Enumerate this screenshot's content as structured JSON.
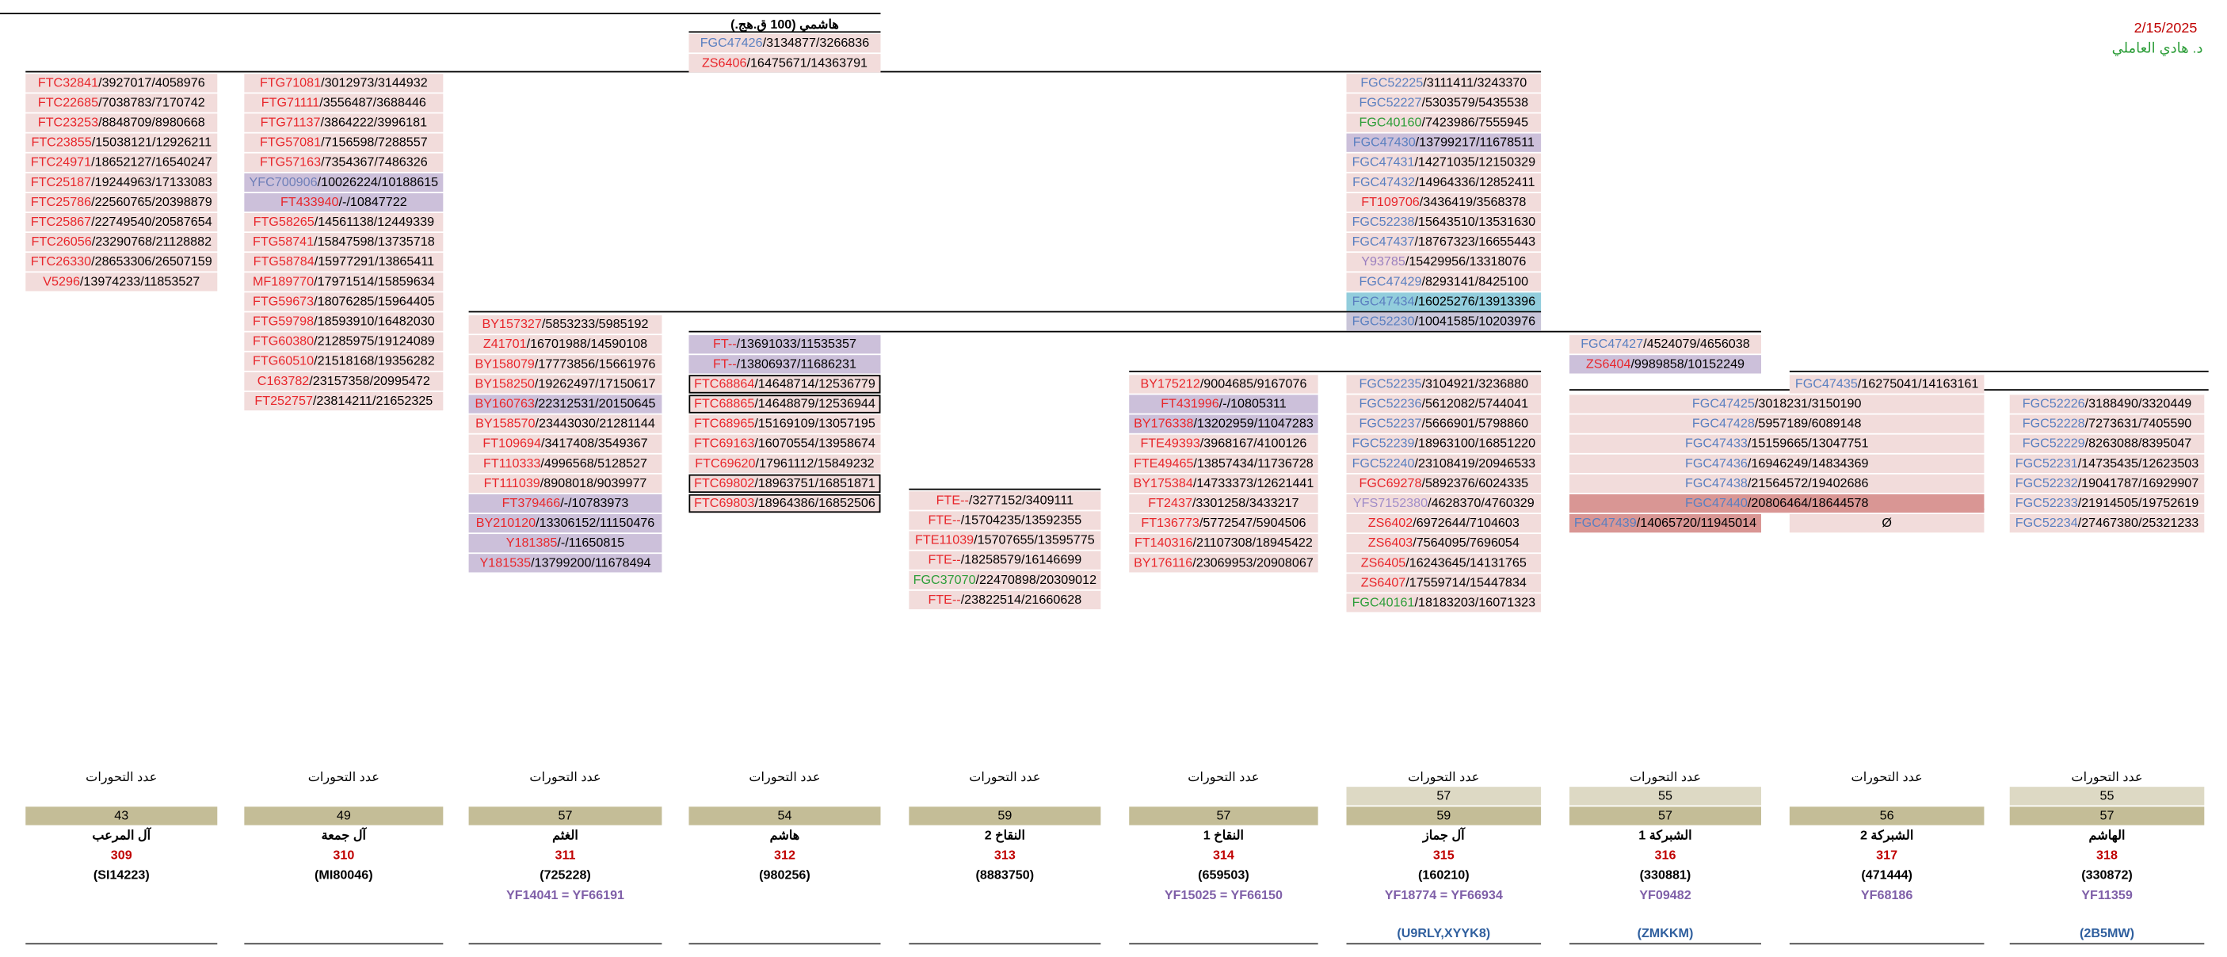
{
  "header": {
    "date": "2/15/2025",
    "author": "د. هادي العاملي"
  },
  "top": {
    "title": "هاشمي (100 ق.هج.)",
    "name_color": "#5a7fc0",
    "cells": [
      {
        "text": "FGC47426/3134877/3266836"
      },
      {
        "text": "ZS6406/16475671/14363791",
        "color": "#e8262b"
      }
    ]
  },
  "blocks": [
    {
      "name_color": "#e8262b",
      "cells": [
        {
          "text": "FTC32841/3927017/4058976"
        },
        {
          "text": "FTC22685/7038783/7170742"
        },
        {
          "text": "FTC23253/8848709/8980668"
        },
        {
          "text": "FTC23855/15038121/12926211"
        },
        {
          "text": "FTC24971/18652127/16540247"
        },
        {
          "text": "FTC25187/19244963/17133083"
        },
        {
          "text": "FTC25786/22560765/20398879"
        },
        {
          "text": "FTC25867/22749540/20587654"
        },
        {
          "text": "FTC26056/23290768/21128882"
        },
        {
          "text": "FTC26330/28653306/26507159"
        },
        {
          "text": "V5296/13974233/11853527"
        }
      ]
    },
    {
      "name_color": "#e8262b",
      "cells": [
        {
          "text": "FTG71081/3012973/3144932"
        },
        {
          "text": "FTG71111/3556487/3688446"
        },
        {
          "text": "FTG71137/3864222/3996181"
        },
        {
          "text": "FTG57081/7156598/7288557"
        },
        {
          "text": "FTG57163/7354367/7486326"
        },
        {
          "text": "YFC700906/10026224/10188615",
          "color": "#6f7fb8",
          "fill": "#ccc0da"
        },
        {
          "text": "FT433940/-/10847722",
          "fill": "#ccc0da"
        },
        {
          "text": "FTG58265/14561138/12449339"
        },
        {
          "text": "FTG58741/15847598/13735718"
        },
        {
          "text": "FTG58784/15977291/13865411"
        },
        {
          "text": "MF189770/17971514/15859634"
        },
        {
          "text": "FTG59673/18076285/15964405"
        },
        {
          "text": "FTG59798/18593910/16482030"
        },
        {
          "text": "FTG60380/21285975/19124089"
        },
        {
          "text": "FTG60510/21518168/19356282"
        },
        {
          "text": "C163782/23157358/20995472"
        },
        {
          "text": "FT252757/23814211/21652325"
        }
      ]
    },
    {
      "name_color": "#e8262b",
      "cells": [
        {
          "text": "BY157327/5853233/5985192"
        },
        {
          "text": "Z41701/16701988/14590108"
        },
        {
          "text": "BY158079/17773856/15661976"
        },
        {
          "text": "BY158250/19262497/17150617"
        },
        {
          "text": "BY160763/22312531/20150645",
          "fill": "#ccc0da"
        },
        {
          "text": "BY158570/23443030/21281144"
        },
        {
          "text": "FT109694/3417408/3549367"
        },
        {
          "text": "FT110333/4996568/5128527"
        },
        {
          "text": "FT111039/8908018/9039977"
        },
        {
          "text": "FT379466/-/10783973",
          "fill": "#ccc0da"
        },
        {
          "text": "BY210120/13306152/11150476",
          "fill": "#ccc0da"
        },
        {
          "text": "Y181385/-/11650815",
          "fill": "#ccc0da"
        },
        {
          "text": "Y181535/13799200/11678494",
          "fill": "#ccc0da"
        }
      ]
    },
    {
      "name_color": "#e8262b",
      "cells": [
        {
          "text": "FT--/13691033/11535357",
          "fill": "#ccc0da"
        },
        {
          "text": "FT--/13806937/11686231",
          "fill": "#ccc0da"
        },
        {
          "text": "FTC68864/14648714/12536779",
          "boxed": true
        },
        {
          "text": "FTC68865/14648879/12536944",
          "boxed": true
        },
        {
          "text": "FTC68965/15169109/13057195"
        },
        {
          "text": "FTC69163/16070554/13958674"
        },
        {
          "text": "FTC69620/17961112/15849232"
        },
        {
          "text": "FTC69802/18963751/16851871",
          "boxed": true
        },
        {
          "text": "FTC69803/18964386/16852506",
          "boxed": true
        }
      ]
    },
    {
      "name_color": "#e8262b",
      "cells": [
        {
          "text": "FTE--/3277152/3409111"
        },
        {
          "text": "FTE--/15704235/13592355"
        },
        {
          "text": "FTE11039/15707655/13595775"
        },
        {
          "text": "FTE--/18258579/16146699"
        },
        {
          "text": "FGC37070/22470898/20309012",
          "color": "#2e9e3a"
        },
        {
          "text": "FTE--/23822514/21660628"
        }
      ]
    },
    {
      "name_color": "#e8262b",
      "cells": [
        {
          "text": "BY175212/9004685/9167076"
        },
        {
          "text": "FT431996/-/10805311",
          "fill": "#ccc0da"
        },
        {
          "text": "BY176338/13202959/11047283",
          "fill": "#ccc0da"
        },
        {
          "text": "FTE49393/3968167/4100126"
        },
        {
          "text": "FTE49465/13857434/11736728"
        },
        {
          "text": "BY175384/14733373/12621441"
        },
        {
          "text": "FT2437/3301258/3433217"
        },
        {
          "text": "FT136773/5772547/5904506"
        },
        {
          "text": "FT140316/21107308/18945422"
        },
        {
          "text": "BY176116/23069953/20908067"
        }
      ]
    },
    {
      "name_color": "#5a7fc0",
      "cells": [
        {
          "text": "FGC52225/3111411/3243370"
        },
        {
          "text": "FGC52227/5303579/5435538"
        },
        {
          "text": "FGC40160/7423986/7555945",
          "color": "#2e9e3a"
        },
        {
          "text": "FGC47430/13799217/11678511",
          "fill": "#ccc0da"
        },
        {
          "text": "FGC47431/14271035/12150329"
        },
        {
          "text": "FGC47432/14964336/12852411"
        },
        {
          "text": "FT109706/3436419/3568378",
          "color": "#e8262b"
        },
        {
          "text": "FGC52238/15643510/13531630"
        },
        {
          "text": "FGC47437/18767323/16655443"
        },
        {
          "text": "Y93785/15429956/13318076",
          "color": "#9a7fbf"
        },
        {
          "text": "FGC47429/8293141/8425100"
        },
        {
          "text": "FGC47434/16025276/13913396",
          "fill": "#92cddc"
        },
        {
          "text": "FGC52230/10041585/10203976",
          "fill": "#c9c5d8"
        }
      ]
    },
    {
      "name_color": "#5a7fc0",
      "cells": [
        {
          "text": "FGC52235/3104921/3236880"
        },
        {
          "text": "FGC52236/5612082/5744041"
        },
        {
          "text": "FGC52237/5666901/5798860"
        },
        {
          "text": "FGC52239/18963100/16851220"
        },
        {
          "text": "FGC52240/23108419/20946533"
        },
        {
          "text": "FGC69278/5892376/6024335",
          "color": "#e8262b"
        },
        {
          "text": "YFS7152380/4628370/4760329",
          "color": "#a08cc8"
        },
        {
          "text": "ZS6402/6972644/7104603",
          "color": "#e8262b"
        },
        {
          "text": "ZS6403/7564095/7696054",
          "color": "#e8262b"
        },
        {
          "text": "ZS6405/16243645/14131765",
          "color": "#e8262b"
        },
        {
          "text": "ZS6407/17559714/15447834",
          "color": "#e8262b"
        },
        {
          "text": "FGC40161/18183203/16071323",
          "color": "#2e9e3a"
        }
      ]
    },
    {
      "name_color": "#5a7fc0",
      "cells": [
        {
          "text": "FGC47427/4524079/4656038"
        },
        {
          "text": "ZS6404/9989858/10152249",
          "color": "#e8262b",
          "fill": "#ccc0da"
        }
      ]
    },
    {
      "name_color": "#5a7fc0",
      "cells": [
        {
          "text": "FGC47425/3018231/3150190"
        },
        {
          "text": "FGC47428/5957189/6089148"
        },
        {
          "text": "FGC47433/15159665/13047751"
        },
        {
          "text": "FGC47436/16946249/14834369"
        },
        {
          "text": "FGC47438/21564572/19402686"
        },
        {
          "text": "FGC47440/20806464/18644578",
          "fill": "#d99694"
        }
      ]
    },
    {
      "name_color": "#5a7fc0",
      "cells": [
        {
          "text": "FGC47439/14065720/11945014",
          "fill": "#d99694"
        }
      ]
    },
    {
      "name_color": "#000000",
      "cells": [
        {
          "text": "Ø"
        }
      ]
    },
    {
      "name_color": "#5a7fc0",
      "cells": [
        {
          "text": "FGC47435/16275041/14163161"
        }
      ]
    },
    {
      "name_color": "#5a7fc0",
      "cells": [
        {
          "text": "FGC52226/3188490/3320449"
        },
        {
          "text": "FGC52228/7273631/7405590"
        },
        {
          "text": "FGC52229/8263088/8395047"
        },
        {
          "text": "FGC52231/14735435/12623503"
        },
        {
          "text": "FGC52232/19041787/16929907"
        },
        {
          "text": "FGC52233/21914505/19752619"
        },
        {
          "text": "FGC52234/27467380/25321233"
        }
      ]
    }
  ],
  "summary": [
    {
      "label": "عدد التحورات",
      "counts": [
        "43"
      ],
      "name": "آل المرعب",
      "number": "309",
      "code": "(SI14223)"
    },
    {
      "label": "عدد التحورات",
      "counts": [
        "49"
      ],
      "name": "آل جمعة",
      "number": "310",
      "code": "(MI80046)"
    },
    {
      "label": "عدد التحورات",
      "counts": [
        "57"
      ],
      "name": "الغثم",
      "number": "311",
      "code": "(725228)",
      "alias": "YF14041 = YF66191"
    },
    {
      "label": "عدد التحورات",
      "counts": [
        "54"
      ],
      "name": "هاشم",
      "number": "312",
      "code": "(980256)"
    },
    {
      "label": "عدد التحورات",
      "counts": [
        "59"
      ],
      "name": "النقاخ 2",
      "number": "313",
      "code": "(8883750)"
    },
    {
      "label": "عدد التحورات",
      "counts": [
        "57"
      ],
      "name": "النقاخ 1",
      "number": "314",
      "code": "(659503)",
      "alias": "YF15025 = YF66150"
    },
    {
      "label": "عدد التحورات",
      "counts": [
        "57",
        "59"
      ],
      "name": "آل جماز",
      "number": "315",
      "code": "(160210)",
      "alias": "YF18774 = YF66934",
      "extra": "(U9RLY,XYYK8)"
    },
    {
      "label": "عدد التحورات",
      "counts": [
        "55",
        "57"
      ],
      "name": "الشبركة 1",
      "number": "316",
      "code": "(330881)",
      "alias": "YF09482",
      "extra": "(ZMKKM)"
    },
    {
      "label": "عدد التحورات",
      "counts": [
        "56"
      ],
      "name": "الشبركة 2",
      "number": "317",
      "code": "(471444)",
      "alias": "YF68186"
    },
    {
      "label": "عدد التحورات",
      "counts": [
        "55",
        "57"
      ],
      "name": "الهاشم",
      "number": "318",
      "code": "(330872)",
      "alias": "YF11359",
      "extra": "(2B5MW)"
    }
  ]
}
